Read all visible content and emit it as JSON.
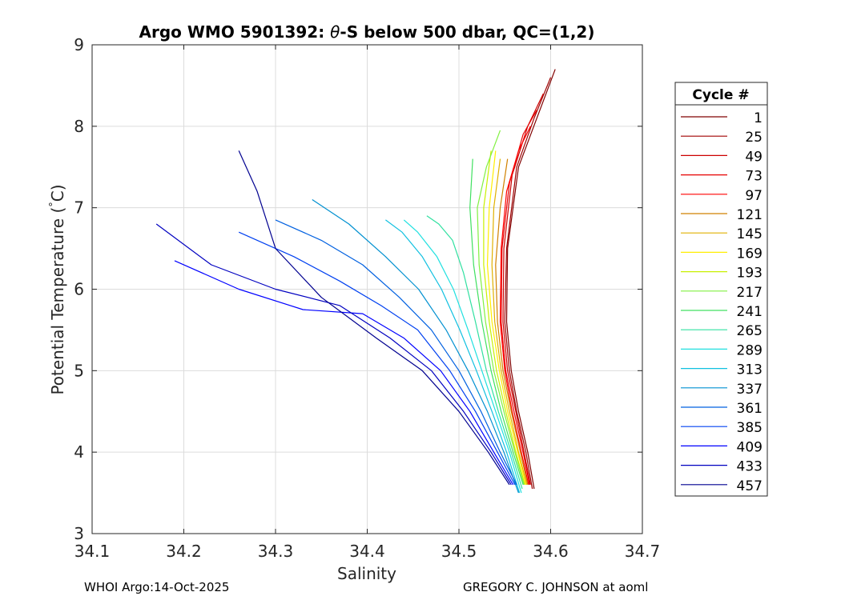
{
  "chart_data": {
    "type": "line",
    "title_prefix": "Argo WMO 5901392: ",
    "title_theta": "θ",
    "title_suffix": "-S below 500 dbar,  QC=(1,2)",
    "xlabel": "Salinity",
    "ylabel_main": "Potential Temperature (",
    "ylabel_deg": "°",
    "ylabel_end": "C)",
    "xlim": [
      34.1,
      34.7
    ],
    "ylim": [
      3,
      9
    ],
    "xticks": [
      34.1,
      34.2,
      34.3,
      34.4,
      34.5,
      34.6,
      34.7
    ],
    "xtick_labels": [
      "34.1",
      "34.2",
      "34.3",
      "34.4",
      "34.5",
      "34.6",
      "34.7"
    ],
    "yticks": [
      3,
      4,
      5,
      6,
      7,
      8,
      9
    ],
    "ytick_labels": [
      "3",
      "4",
      "5",
      "6",
      "7",
      "8",
      "9"
    ],
    "grid": true,
    "legend": {
      "title": "Cycle #",
      "placement": "outside-right",
      "entries": [
        {
          "label": "1",
          "color": "#800000"
        },
        {
          "label": "25",
          "color": "#a00000"
        },
        {
          "label": "49",
          "color": "#cc0000"
        },
        {
          "label": "73",
          "color": "#e60000"
        },
        {
          "label": "97",
          "color": "#ff0000"
        },
        {
          "label": "121",
          "color": "#d08000"
        },
        {
          "label": "145",
          "color": "#e0b000"
        },
        {
          "label": "169",
          "color": "#ffee00"
        },
        {
          "label": "193",
          "color": "#c8f000"
        },
        {
          "label": "217",
          "color": "#80f040"
        },
        {
          "label": "241",
          "color": "#40e060"
        },
        {
          "label": "265",
          "color": "#30e0a0"
        },
        {
          "label": "289",
          "color": "#20e0e0"
        },
        {
          "label": "313",
          "color": "#10c0e0"
        },
        {
          "label": "337",
          "color": "#0090d0"
        },
        {
          "label": "361",
          "color": "#0060e0"
        },
        {
          "label": "385",
          "color": "#0040f0"
        },
        {
          "label": "409",
          "color": "#0000ff"
        },
        {
          "label": "433",
          "color": "#0000c0"
        },
        {
          "label": "457",
          "color": "#000090"
        }
      ]
    },
    "series": [
      {
        "name": "1",
        "color": "#800000",
        "x": [
          34.582,
          34.575,
          34.565,
          34.557,
          34.552,
          34.553,
          34.565,
          34.585,
          34.605
        ],
        "y": [
          3.55,
          4.0,
          4.5,
          5.0,
          5.6,
          6.5,
          7.5,
          8.1,
          8.7
        ]
      },
      {
        "name": "25",
        "color": "#a00000",
        "x": [
          34.58,
          34.573,
          34.563,
          34.555,
          34.55,
          34.552,
          34.563,
          34.582,
          34.6
        ],
        "y": [
          3.55,
          4.0,
          4.5,
          5.0,
          5.6,
          6.5,
          7.5,
          8.1,
          8.6
        ]
      },
      {
        "name": "49",
        "color": "#cc0000",
        "x": [
          34.578,
          34.571,
          34.562,
          34.553,
          34.548,
          34.549,
          34.558,
          34.575,
          34.592
        ],
        "y": [
          3.6,
          4.0,
          4.5,
          5.0,
          5.6,
          6.5,
          7.4,
          8.0,
          8.4
        ]
      },
      {
        "name": "73",
        "color": "#e60000",
        "x": [
          34.577,
          34.57,
          34.56,
          34.551,
          34.546,
          34.547,
          34.555,
          34.57,
          34.585
        ],
        "y": [
          3.6,
          4.0,
          4.5,
          5.0,
          5.6,
          6.5,
          7.3,
          7.9,
          8.2
        ]
      },
      {
        "name": "97",
        "color": "#ff0000",
        "x": [
          34.576,
          34.568,
          34.558,
          34.55,
          34.545,
          34.546,
          34.552,
          34.565,
          34.578
        ],
        "y": [
          3.6,
          4.0,
          4.5,
          5.0,
          5.6,
          6.5,
          7.2,
          7.7,
          8.0
        ]
      },
      {
        "name": "121",
        "color": "#d08000",
        "x": [
          34.575,
          34.567,
          34.557,
          34.548,
          34.542,
          34.54,
          34.545,
          34.553
        ],
        "y": [
          3.6,
          4.0,
          4.5,
          5.0,
          5.6,
          6.3,
          7.0,
          7.6
        ]
      },
      {
        "name": "145",
        "color": "#e0b000",
        "x": [
          34.574,
          34.565,
          34.555,
          34.546,
          34.539,
          34.536,
          34.538,
          34.545
        ],
        "y": [
          3.6,
          4.0,
          4.5,
          5.0,
          5.6,
          6.3,
          7.0,
          7.6
        ]
      },
      {
        "name": "169",
        "color": "#ffee00",
        "x": [
          34.573,
          34.564,
          34.553,
          34.544,
          34.536,
          34.531,
          34.533,
          34.54
        ],
        "y": [
          3.6,
          4.0,
          4.5,
          5.0,
          5.6,
          6.3,
          7.0,
          7.7
        ]
      },
      {
        "name": "193",
        "color": "#c8f000",
        "x": [
          34.572,
          34.562,
          34.551,
          34.541,
          34.533,
          34.527,
          34.527,
          34.535
        ],
        "y": [
          3.6,
          4.0,
          4.5,
          5.0,
          5.6,
          6.3,
          7.0,
          7.7
        ]
      },
      {
        "name": "217",
        "color": "#80f040",
        "x": [
          34.571,
          34.561,
          34.549,
          34.538,
          34.529,
          34.522,
          34.52,
          34.53,
          34.545
        ],
        "y": [
          3.6,
          4.0,
          4.5,
          5.0,
          5.6,
          6.3,
          7.0,
          7.5,
          7.95
        ]
      },
      {
        "name": "241",
        "color": "#40e060",
        "x": [
          34.57,
          34.559,
          34.546,
          34.535,
          34.525,
          34.516,
          34.512,
          34.515
        ],
        "y": [
          3.6,
          4.0,
          4.5,
          5.0,
          5.6,
          6.3,
          7.0,
          7.6
        ]
      },
      {
        "name": "265",
        "color": "#30e0a0",
        "x": [
          34.569,
          34.557,
          34.543,
          34.53,
          34.518,
          34.505,
          34.493,
          34.478,
          34.465
        ],
        "y": [
          3.55,
          4.0,
          4.5,
          5.0,
          5.6,
          6.2,
          6.6,
          6.8,
          6.9
        ]
      },
      {
        "name": "289",
        "color": "#20e0e0",
        "x": [
          34.568,
          34.555,
          34.54,
          34.525,
          34.51,
          34.494,
          34.476,
          34.455,
          34.44
        ],
        "y": [
          3.5,
          4.0,
          4.5,
          5.0,
          5.5,
          6.0,
          6.4,
          6.7,
          6.85
        ]
      },
      {
        "name": "313",
        "color": "#10c0e0",
        "x": [
          34.566,
          34.552,
          34.536,
          34.519,
          34.501,
          34.481,
          34.46,
          34.438,
          34.42
        ],
        "y": [
          3.5,
          4.0,
          4.5,
          5.0,
          5.5,
          6.0,
          6.4,
          6.7,
          6.85
        ]
      },
      {
        "name": "337",
        "color": "#0090d0",
        "x": [
          34.565,
          34.549,
          34.531,
          34.51,
          34.486,
          34.456,
          34.42,
          34.38,
          34.34
        ],
        "y": [
          3.5,
          4.0,
          4.5,
          5.0,
          5.5,
          6.0,
          6.4,
          6.8,
          7.1
        ]
      },
      {
        "name": "361",
        "color": "#0060e0",
        "x": [
          34.563,
          34.545,
          34.524,
          34.5,
          34.47,
          34.435,
          34.395,
          34.35,
          34.3
        ],
        "y": [
          3.6,
          4.0,
          4.5,
          5.0,
          5.5,
          5.9,
          6.3,
          6.6,
          6.85
        ]
      },
      {
        "name": "385",
        "color": "#0040f0",
        "x": [
          34.561,
          34.542,
          34.518,
          34.49,
          34.455,
          34.415,
          34.37,
          34.32,
          34.26
        ],
        "y": [
          3.6,
          4.0,
          4.5,
          5.0,
          5.5,
          5.8,
          6.1,
          6.4,
          6.7
        ]
      },
      {
        "name": "409",
        "color": "#0000ff",
        "x": [
          34.559,
          34.538,
          34.512,
          34.48,
          34.44,
          34.395,
          34.33,
          34.26,
          34.19
        ],
        "y": [
          3.6,
          4.0,
          4.5,
          5.0,
          5.4,
          5.7,
          5.75,
          6.0,
          6.35
        ]
      },
      {
        "name": "433",
        "color": "#0000c0",
        "x": [
          34.557,
          34.535,
          34.505,
          34.47,
          34.425,
          34.37,
          34.3,
          34.23,
          34.17
        ],
        "y": [
          3.6,
          4.0,
          4.5,
          5.0,
          5.4,
          5.8,
          6.0,
          6.3,
          6.8
        ]
      },
      {
        "name": "457",
        "color": "#000090",
        "x": [
          34.555,
          34.532,
          34.5,
          34.46,
          34.41,
          34.35,
          34.3,
          34.28,
          34.26
        ],
        "y": [
          3.6,
          4.0,
          4.5,
          5.0,
          5.4,
          5.9,
          6.5,
          7.2,
          7.7
        ]
      }
    ]
  },
  "footer": {
    "left": "WHOI Argo:14-Oct-2025",
    "right": "GREGORY C. JOHNSON at aoml"
  }
}
